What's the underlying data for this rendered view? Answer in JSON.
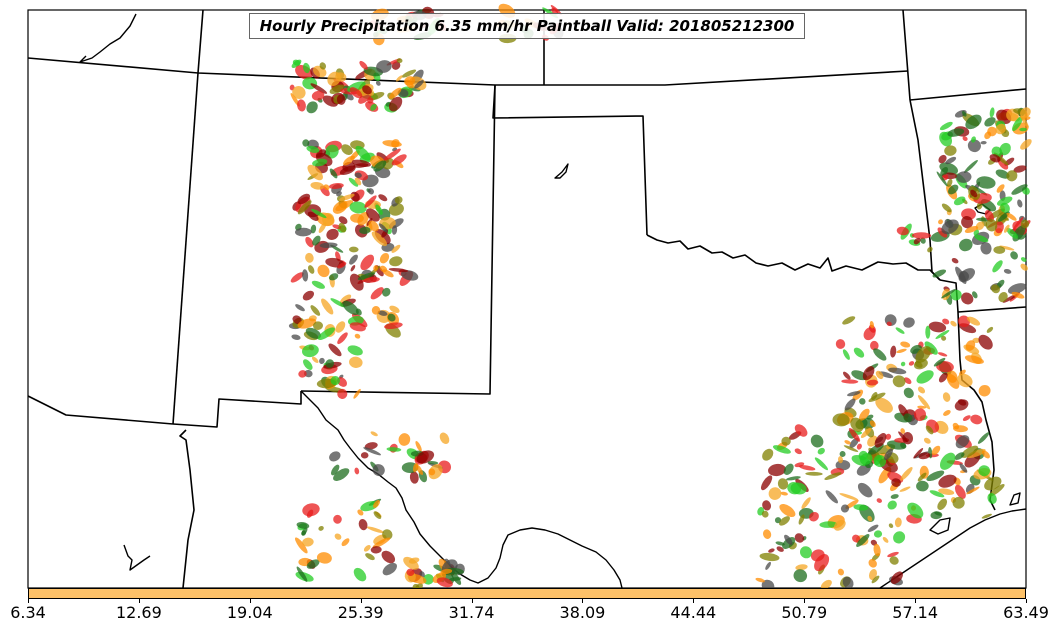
{
  "map": {
    "title": "Hourly Precipitation 6.35 mm/hr Paintball Valid: 201805212300",
    "region": "Southern Plains, United States",
    "threshold_mm_per_hr": 6.35,
    "valid_time": "201805212300",
    "paintball_colors": [
      "#e81c1c",
      "#ff8c00",
      "#808000",
      "#23cc23",
      "#1e6e1e",
      "#8b0000",
      "#4a4a4a",
      "#f5a623"
    ]
  },
  "colorbar": {
    "color": "#fdc168",
    "tick_labels": [
      "6.34",
      "12.69",
      "19.04",
      "25.39",
      "31.74",
      "38.09",
      "44.44",
      "50.79",
      "57.14",
      "63.49"
    ]
  }
}
